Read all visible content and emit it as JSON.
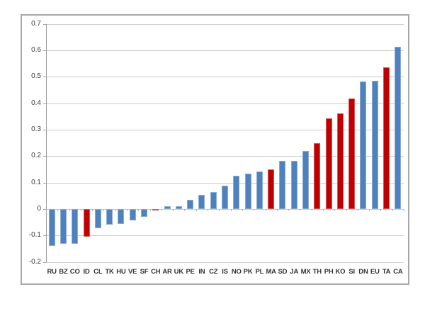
{
  "chart": {
    "background": "#ffffff",
    "frame_border_color": "#a8a8a8",
    "gridline_color": "#cccccc",
    "axis_color": "#9e9e9e",
    "label_color": "#3c3c3c",
    "bar_palette": {
      "blue": "#4e81bd",
      "red": "#c00000"
    }
  },
  "chart_data": {
    "type": "bar",
    "title": "",
    "xlabel": "",
    "ylabel": "",
    "ylim": [
      -0.2,
      0.7
    ],
    "grid": true,
    "legend": false,
    "y_tick_labels": [
      "0.7",
      "0.6",
      "0.5",
      "0.4",
      "0.3",
      "0.2",
      "0.1",
      "0",
      "-0.1",
      "-0.2"
    ],
    "categories": [
      "RU",
      "BZ",
      "CO",
      "ID",
      "CL",
      "TK",
      "HU",
      "VE",
      "SF",
      "CH",
      "AR",
      "UK",
      "PE",
      "IN",
      "CZ",
      "IS",
      "NO",
      "PK",
      "PL",
      "MA",
      "SD",
      "JA",
      "MX",
      "TH",
      "PH",
      "KO",
      "SI",
      "DN",
      "EU",
      "TA",
      "CA"
    ],
    "values": [
      -0.138,
      -0.13,
      -0.132,
      -0.104,
      -0.073,
      -0.059,
      -0.056,
      -0.042,
      -0.028,
      -0.006,
      0.011,
      0.012,
      0.034,
      0.055,
      0.065,
      0.088,
      0.125,
      0.134,
      0.141,
      0.15,
      0.182,
      0.183,
      0.219,
      0.25,
      0.344,
      0.361,
      0.418,
      0.483,
      0.485,
      0.535,
      0.614
    ],
    "colors": [
      "blue",
      "blue",
      "blue",
      "red",
      "blue",
      "blue",
      "blue",
      "blue",
      "blue",
      "red",
      "blue",
      "blue",
      "blue",
      "blue",
      "blue",
      "blue",
      "blue",
      "blue",
      "blue",
      "red",
      "blue",
      "blue",
      "blue",
      "red",
      "red",
      "red",
      "red",
      "blue",
      "blue",
      "red",
      "blue"
    ]
  }
}
